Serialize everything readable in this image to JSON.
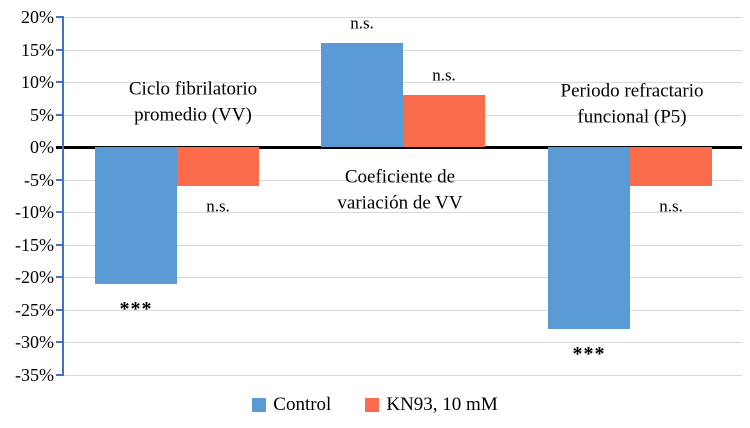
{
  "chart_data": {
    "type": "bar",
    "title": "",
    "categories": [
      "Ciclo fibrilatorio promedio (VV)",
      "Coeficiente de variación de VV",
      "Periodo refractario funcional (P5)"
    ],
    "category_lines": [
      [
        "Ciclo fibrilatorio",
        "promedio (VV)"
      ],
      [
        "Coeficiente de",
        "variación de VV"
      ],
      [
        "Periodo refractario",
        "funcional (P5)"
      ]
    ],
    "series": [
      {
        "name": "Control",
        "color": "#5B9BD5",
        "values": [
          -21,
          16,
          -28
        ]
      },
      {
        "name": "KN93, 10 mM",
        "color": "#FB6C4D",
        "values": [
          -6,
          8,
          -6
        ]
      }
    ],
    "significance": [
      {
        "series_index": 0,
        "group_index": 0,
        "label": "***"
      },
      {
        "series_index": 1,
        "group_index": 0,
        "label": "n.s."
      },
      {
        "series_index": 0,
        "group_index": 1,
        "label": "n.s."
      },
      {
        "series_index": 1,
        "group_index": 1,
        "label": "n.s."
      },
      {
        "series_index": 0,
        "group_index": 2,
        "label": "***"
      },
      {
        "series_index": 1,
        "group_index": 2,
        "label": "n.s."
      }
    ],
    "y_axis": {
      "min": -35,
      "max": 20,
      "step": 5,
      "ticks": [
        {
          "v": 20,
          "label": "20%"
        },
        {
          "v": 15,
          "label": "15%"
        },
        {
          "v": 10,
          "label": "10%"
        },
        {
          "v": 5,
          "label": "5%"
        },
        {
          "v": 0,
          "label": "0%"
        },
        {
          "v": -5,
          "label": "-5%"
        },
        {
          "v": -10,
          "label": "-10%"
        },
        {
          "v": -15,
          "label": "-15%"
        },
        {
          "v": -20,
          "label": "-20%"
        },
        {
          "v": -25,
          "label": "-25%"
        },
        {
          "v": -30,
          "label": "-30%"
        },
        {
          "v": -35,
          "label": "-35%"
        }
      ]
    },
    "grid": true,
    "legend_position": "bottom",
    "colors": {
      "axis": "#4472C4",
      "gridline": "#D9D9D9",
      "zero_line": "#000000"
    }
  }
}
